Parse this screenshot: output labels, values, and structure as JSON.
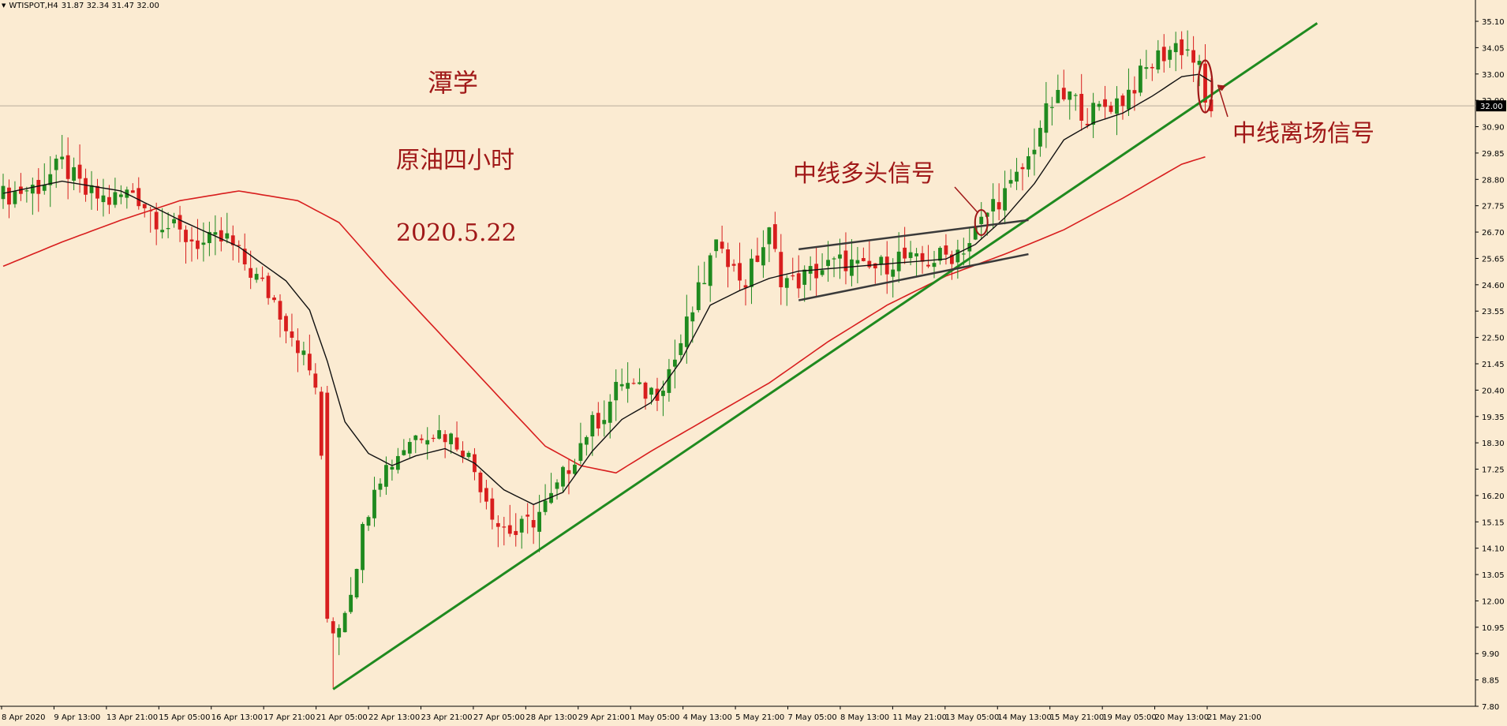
{
  "header": {
    "symbol": "WTISPOT,H4",
    "ohlc": "31.87 32.34 31.47 32.00"
  },
  "annotations": {
    "author": "潭学",
    "subject": "原油四小时",
    "date": "2020.5.22",
    "buy_signal": "中线多头信号",
    "exit_signal": "中线离场信号"
  },
  "colors": {
    "background": "#fbebd2",
    "bull_candle": "#1f8a1f",
    "bear_candle": "#d81e1e",
    "ma_fast": "#111111",
    "ma_slow": "#d81e1e",
    "trendline": "#1f8a1f",
    "annotation_text": "#a01818",
    "current_price_box": "#000000"
  },
  "chart_data": {
    "type": "candlestick",
    "timeframe": "H4",
    "current_price": "32.00",
    "current_price_value": 32.0,
    "price_axis_labels": [
      "35.10",
      "34.05",
      "33.00",
      "32.00",
      "30.90",
      "29.85",
      "28.80",
      "27.75",
      "26.70",
      "25.65",
      "24.60",
      "23.55",
      "22.50",
      "21.45",
      "20.40",
      "19.35",
      "18.30",
      "17.25",
      "16.20",
      "15.15",
      "14.10",
      "13.05",
      "12.00",
      "10.95",
      "9.90",
      "8.85",
      "7.80"
    ],
    "time_axis_labels": [
      "8 Apr 2020",
      "9 Apr 13:00",
      "13 Apr 21:00",
      "15 Apr 05:00",
      "16 Apr 13:00",
      "17 Apr 21:00",
      "21 Apr 05:00",
      "22 Apr 13:00",
      "23 Apr 21:00",
      "27 Apr 05:00",
      "28 Apr 13:00",
      "29 Apr 21:00",
      "1 May 05:00",
      "4 May 13:00",
      "5 May 21:00",
      "7 May 05:00",
      "8 May 13:00",
      "11 May 21:00",
      "13 May 05:00",
      "14 May 13:00",
      "15 May 21:00",
      "19 May 05:00",
      "20 May 13:00",
      "21 May 21:00"
    ],
    "ylim": [
      7.3,
      35.9
    ],
    "price_path": [
      {
        "i": 0,
        "p": 28.3
      },
      {
        "i": 6,
        "p": 28.7
      },
      {
        "i": 10,
        "p": 29.6
      },
      {
        "i": 14,
        "p": 28.4
      },
      {
        "i": 18,
        "p": 28.1
      },
      {
        "i": 22,
        "p": 28.5
      },
      {
        "i": 26,
        "p": 27.4
      },
      {
        "i": 30,
        "p": 26.7
      },
      {
        "i": 34,
        "p": 26.3
      },
      {
        "i": 38,
        "p": 26.5
      },
      {
        "i": 42,
        "p": 25.2
      },
      {
        "i": 46,
        "p": 24.0
      },
      {
        "i": 50,
        "p": 22.2
      },
      {
        "i": 53,
        "p": 20.5
      },
      {
        "i": 55,
        "p": 14.0
      },
      {
        "i": 57,
        "p": 10.7
      },
      {
        "i": 59,
        "p": 12.2
      },
      {
        "i": 61,
        "p": 14.5
      },
      {
        "i": 63,
        "p": 16.6
      },
      {
        "i": 66,
        "p": 17.4
      },
      {
        "i": 69,
        "p": 18.3
      },
      {
        "i": 72,
        "p": 18.7
      },
      {
        "i": 75,
        "p": 18.5
      },
      {
        "i": 78,
        "p": 18.0
      },
      {
        "i": 81,
        "p": 16.5
      },
      {
        "i": 84,
        "p": 14.8
      },
      {
        "i": 87,
        "p": 14.4
      },
      {
        "i": 90,
        "p": 15.0
      },
      {
        "i": 93,
        "p": 15.8
      },
      {
        "i": 96,
        "p": 17.2
      },
      {
        "i": 99,
        "p": 18.6
      },
      {
        "i": 102,
        "p": 19.4
      },
      {
        "i": 105,
        "p": 20.7
      },
      {
        "i": 108,
        "p": 20.2
      },
      {
        "i": 111,
        "p": 20.3
      },
      {
        "i": 114,
        "p": 21.6
      },
      {
        "i": 117,
        "p": 23.6
      },
      {
        "i": 120,
        "p": 25.6
      },
      {
        "i": 122,
        "p": 26.5
      },
      {
        "i": 124,
        "p": 25.2
      },
      {
        "i": 126,
        "p": 24.8
      },
      {
        "i": 128,
        "p": 25.8
      },
      {
        "i": 130,
        "p": 26.7
      },
      {
        "i": 132,
        "p": 25.0
      },
      {
        "i": 134,
        "p": 24.7
      },
      {
        "i": 137,
        "p": 25.1
      },
      {
        "i": 140,
        "p": 25.4
      },
      {
        "i": 143,
        "p": 25.6
      },
      {
        "i": 146,
        "p": 25.2
      },
      {
        "i": 149,
        "p": 25.4
      },
      {
        "i": 152,
        "p": 25.8
      },
      {
        "i": 155,
        "p": 25.5
      },
      {
        "i": 158,
        "p": 25.7
      },
      {
        "i": 161,
        "p": 25.9
      },
      {
        "i": 164,
        "p": 26.4
      },
      {
        "i": 166,
        "p": 27.2
      },
      {
        "i": 168,
        "p": 28.0
      },
      {
        "i": 171,
        "p": 28.6
      },
      {
        "i": 174,
        "p": 29.8
      },
      {
        "i": 176,
        "p": 31.2
      },
      {
        "i": 178,
        "p": 32.1
      },
      {
        "i": 181,
        "p": 32.4
      },
      {
        "i": 184,
        "p": 31.6
      },
      {
        "i": 187,
        "p": 32.0
      },
      {
        "i": 190,
        "p": 32.3
      },
      {
        "i": 193,
        "p": 33.2
      },
      {
        "i": 196,
        "p": 34.0
      },
      {
        "i": 199,
        "p": 34.5
      },
      {
        "i": 201,
        "p": 34.3
      },
      {
        "i": 203,
        "p": 33.5
      },
      {
        "i": 204,
        "p": 32.0
      }
    ],
    "ma_fast": [
      {
        "i": 0,
        "p": 28.4
      },
      {
        "i": 10,
        "p": 28.9
      },
      {
        "i": 20,
        "p": 28.5
      },
      {
        "i": 30,
        "p": 27.3
      },
      {
        "i": 40,
        "p": 26.2
      },
      {
        "i": 48,
        "p": 24.8
      },
      {
        "i": 52,
        "p": 23.6
      },
      {
        "i": 55,
        "p": 21.5
      },
      {
        "i": 58,
        "p": 19.0
      },
      {
        "i": 62,
        "p": 17.7
      },
      {
        "i": 66,
        "p": 17.2
      },
      {
        "i": 70,
        "p": 17.6
      },
      {
        "i": 75,
        "p": 17.9
      },
      {
        "i": 80,
        "p": 17.3
      },
      {
        "i": 85,
        "p": 16.2
      },
      {
        "i": 90,
        "p": 15.6
      },
      {
        "i": 95,
        "p": 16.1
      },
      {
        "i": 100,
        "p": 17.8
      },
      {
        "i": 105,
        "p": 19.1
      },
      {
        "i": 110,
        "p": 19.8
      },
      {
        "i": 115,
        "p": 21.5
      },
      {
        "i": 120,
        "p": 23.8
      },
      {
        "i": 125,
        "p": 24.4
      },
      {
        "i": 130,
        "p": 24.9
      },
      {
        "i": 135,
        "p": 25.2
      },
      {
        "i": 140,
        "p": 25.3
      },
      {
        "i": 145,
        "p": 25.4
      },
      {
        "i": 150,
        "p": 25.5
      },
      {
        "i": 155,
        "p": 25.6
      },
      {
        "i": 160,
        "p": 25.7
      },
      {
        "i": 165,
        "p": 26.3
      },
      {
        "i": 170,
        "p": 27.4
      },
      {
        "i": 175,
        "p": 28.8
      },
      {
        "i": 180,
        "p": 30.6
      },
      {
        "i": 185,
        "p": 31.3
      },
      {
        "i": 190,
        "p": 31.7
      },
      {
        "i": 195,
        "p": 32.4
      },
      {
        "i": 200,
        "p": 33.2
      },
      {
        "i": 203,
        "p": 33.3
      },
      {
        "i": 205,
        "p": 33.0
      }
    ],
    "ma_slow": [
      {
        "i": 0,
        "p": 25.4
      },
      {
        "i": 10,
        "p": 26.4
      },
      {
        "i": 20,
        "p": 27.3
      },
      {
        "i": 30,
        "p": 28.1
      },
      {
        "i": 40,
        "p": 28.5
      },
      {
        "i": 50,
        "p": 28.1
      },
      {
        "i": 57,
        "p": 27.2
      },
      {
        "i": 65,
        "p": 25.0
      },
      {
        "i": 75,
        "p": 22.4
      },
      {
        "i": 85,
        "p": 19.8
      },
      {
        "i": 92,
        "p": 18.0
      },
      {
        "i": 98,
        "p": 17.2
      },
      {
        "i": 104,
        "p": 16.9
      },
      {
        "i": 110,
        "p": 17.8
      },
      {
        "i": 120,
        "p": 19.2
      },
      {
        "i": 130,
        "p": 20.6
      },
      {
        "i": 140,
        "p": 22.3
      },
      {
        "i": 150,
        "p": 23.8
      },
      {
        "i": 160,
        "p": 25.0
      },
      {
        "i": 170,
        "p": 25.9
      },
      {
        "i": 180,
        "p": 26.9
      },
      {
        "i": 190,
        "p": 28.2
      },
      {
        "i": 200,
        "p": 29.6
      },
      {
        "i": 204,
        "p": 29.9
      }
    ],
    "bars_total": 206,
    "trendline": {
      "from": {
        "i": 56,
        "p": 8.0
      },
      "to": {
        "i": 223,
        "p": 35.4
      }
    },
    "channel_upper": {
      "from": {
        "i": 135,
        "p": 26.1
      },
      "to": {
        "i": 174,
        "p": 27.3
      }
    },
    "channel_lower": {
      "from": {
        "i": 135,
        "p": 24.0
      },
      "to": {
        "i": 174,
        "p": 25.9
      }
    },
    "buy_marker": {
      "i": 166,
      "p": 27.2
    },
    "exit_marker": {
      "i": 204,
      "p": 32.8
    }
  }
}
